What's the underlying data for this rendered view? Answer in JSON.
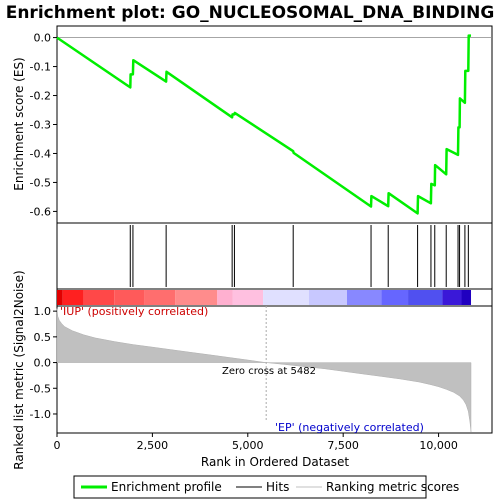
{
  "title": "Enrichment plot: GO_NUCLEOSOMAL_DNA_BINDING",
  "colors": {
    "es_line": "#00ee00",
    "hit_line": "#000000",
    "metric_fill": "#c0c0c0",
    "pos_label": "#cc0000",
    "neg_label": "#0000cc"
  },
  "chart_data": [
    {
      "type": "line",
      "panel": "enrichment-score",
      "ylabel": "Enrichment score (ES)",
      "ylim": [
        -0.64,
        0.04
      ],
      "yticks": [
        0.0,
        -0.1,
        -0.2,
        -0.3,
        -0.4,
        -0.5,
        -0.6
      ],
      "ytick_labels": [
        "0.0",
        "-0.1",
        "-0.2",
        "-0.3",
        "-0.4",
        "-0.5",
        "-0.6"
      ],
      "xlim": [
        0,
        11400
      ],
      "series": [
        {
          "name": "Enrichment profile",
          "x": [
            0,
            1920,
            1930,
            1990,
            2000,
            2860,
            2870,
            4590,
            4600,
            4650,
            4660,
            6190,
            6200,
            8230,
            8240,
            8680,
            8690,
            9450,
            9460,
            9800,
            9810,
            9900,
            9910,
            10200,
            10210,
            10510,
            10520,
            10550,
            10560,
            10690,
            10700,
            10780,
            10790,
            10850
          ],
          "y": [
            0.0,
            -0.172,
            -0.127,
            -0.127,
            -0.078,
            -0.152,
            -0.118,
            -0.275,
            -0.265,
            -0.265,
            -0.26,
            -0.392,
            -0.398,
            -0.583,
            -0.547,
            -0.582,
            -0.537,
            -0.607,
            -0.547,
            -0.572,
            -0.505,
            -0.51,
            -0.44,
            -0.472,
            -0.385,
            -0.405,
            -0.31,
            -0.31,
            -0.21,
            -0.225,
            -0.115,
            -0.115,
            0.007,
            0.007
          ]
        }
      ]
    },
    {
      "type": "hits",
      "panel": "hits",
      "name": "Hits",
      "x": [
        1920,
        1990,
        2860,
        4590,
        4650,
        6190,
        8230,
        8680,
        9450,
        9800,
        9900,
        10200,
        10510,
        10550,
        10690,
        10780
      ]
    },
    {
      "type": "area",
      "panel": "ranked-metric",
      "name": "Ranking metric scores",
      "xlabel": "Rank in Ordered Dataset",
      "ylabel": "Ranked list metric (Signal2Noise)",
      "xlim": [
        0,
        11400
      ],
      "ylim": [
        -1.37,
        1.1
      ],
      "xticks": [
        0,
        2500,
        5000,
        7500,
        10000
      ],
      "xtick_labels": [
        "0",
        "2,500",
        "5,000",
        "7,500",
        "10,000"
      ],
      "yticks": [
        1.0,
        0.5,
        0.0,
        -0.5,
        -1.0
      ],
      "ytick_labels": [
        "1.0",
        "0.5",
        "0.0",
        "-0.5",
        "-1.0"
      ],
      "x": [
        0,
        20,
        60,
        120,
        200,
        400,
        700,
        1000,
        1500,
        2000,
        2500,
        3000,
        3500,
        4000,
        4500,
        5000,
        5482,
        6000,
        6500,
        7000,
        7500,
        8000,
        8500,
        9000,
        9500,
        9800,
        10000,
        10200,
        10400,
        10550,
        10650,
        10720,
        10780,
        10820,
        10850
      ],
      "y": [
        1.05,
        0.9,
        0.82,
        0.76,
        0.7,
        0.62,
        0.54,
        0.48,
        0.41,
        0.35,
        0.3,
        0.25,
        0.2,
        0.15,
        0.1,
        0.05,
        0.0,
        -0.04,
        -0.08,
        -0.12,
        -0.17,
        -0.22,
        -0.27,
        -0.32,
        -0.38,
        -0.43,
        -0.47,
        -0.52,
        -0.58,
        -0.65,
        -0.73,
        -0.82,
        -0.95,
        -1.15,
        -1.35
      ]
    }
  ],
  "annotations": {
    "pos": "'IUP' (positively correlated)",
    "neg": "'EP' (negatively correlated)",
    "zero_cross": "Zero cross at 5482"
  },
  "color_bar": {
    "n_genes": 10850,
    "segments": [
      {
        "to": 150,
        "color": "#e00000"
      },
      {
        "to": 700,
        "color": "#ff2020"
      },
      {
        "to": 1500,
        "color": "#ff4848"
      },
      {
        "to": 2300,
        "color": "#ff5a5a"
      },
      {
        "to": 3100,
        "color": "#ff6e6e"
      },
      {
        "to": 4200,
        "color": "#ff8c8c"
      },
      {
        "to": 4600,
        "color": "#ffb0d0"
      },
      {
        "to": 5400,
        "color": "#ffc0e0"
      },
      {
        "to": 6600,
        "color": "#e0e0ff"
      },
      {
        "to": 7600,
        "color": "#c8c8ff"
      },
      {
        "to": 8500,
        "color": "#8888ff"
      },
      {
        "to": 9200,
        "color": "#6666ff"
      },
      {
        "to": 10100,
        "color": "#5050f0"
      },
      {
        "to": 10600,
        "color": "#3a18d8"
      },
      {
        "to": 10850,
        "color": "#2000c0"
      }
    ]
  },
  "legend": {
    "items": [
      {
        "label": "Enrichment profile",
        "color": "#00ee00",
        "icon": "green-line-icon"
      },
      {
        "label": "Hits",
        "color": "#000000",
        "icon": "black-line-icon"
      },
      {
        "label": "Ranking metric scores",
        "color": "#c0c0c0",
        "icon": "gray-line-icon"
      }
    ]
  }
}
